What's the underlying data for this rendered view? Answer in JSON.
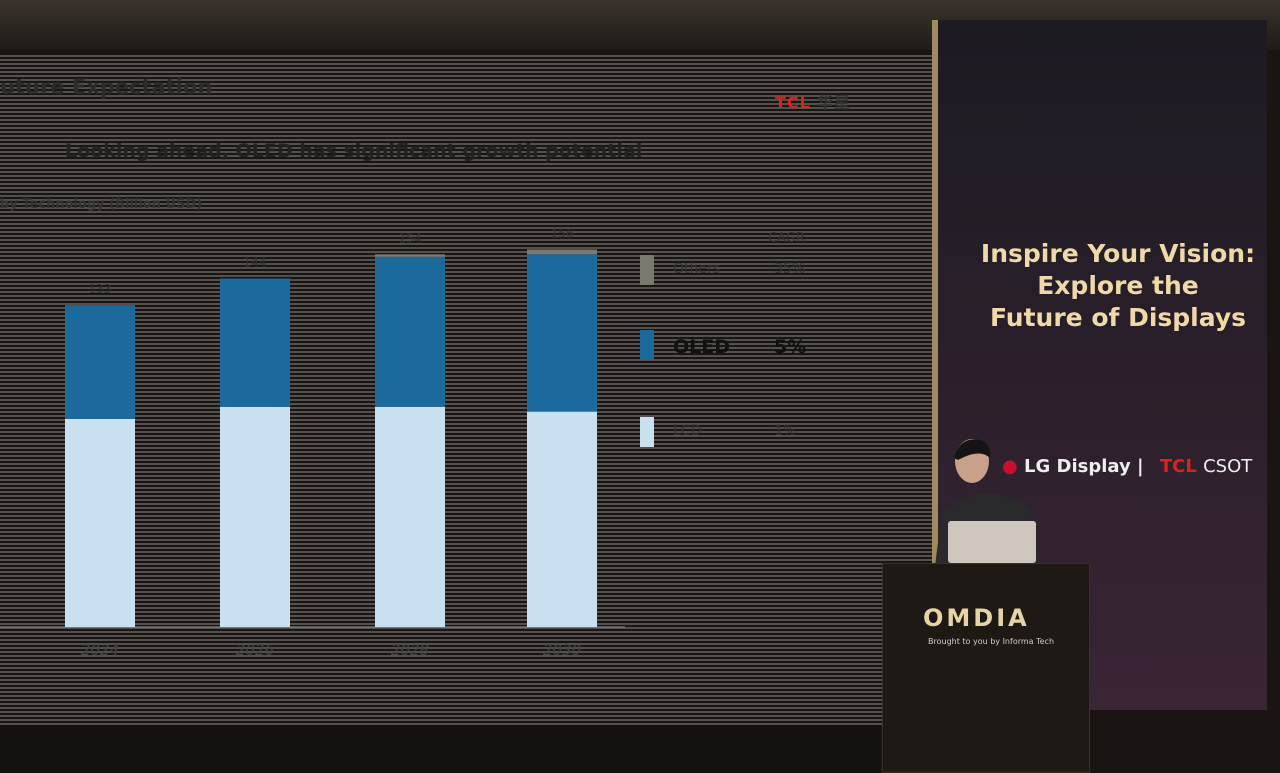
{
  "slide": {
    "title": "uture Expectation",
    "logo": "TCL",
    "logo_cn": "华星",
    "headline": "Looking ahead, OLED has significant growth potential",
    "ylabel": "by Technology (Billion USD)",
    "cagr_header": "CAGR"
  },
  "chart_data": {
    "type": "bar",
    "stacked": true,
    "title": "Looking ahead, OLED has significant growth potential",
    "ylabel": "by Technology (Billion USD)",
    "categories": [
      "2024",
      "2026",
      "2028",
      "2030"
    ],
    "totals": [
      133,
      144,
      154,
      156
    ],
    "series": [
      {
        "name": "LCD",
        "cagr": "1%",
        "color": "#c8e0f0",
        "values": [
          86,
          91,
          91,
          89
        ]
      },
      {
        "name": "OLED",
        "cagr": "5%",
        "color": "#1c6a9c",
        "values": [
          47,
          53,
          62,
          65
        ]
      },
      {
        "name": "Others",
        "cagr": "35%",
        "color": "#7a7a6e",
        "values": [
          0,
          0,
          1,
          2
        ]
      }
    ],
    "ylim": [
      0,
      160
    ],
    "grid": false,
    "legend": "right"
  },
  "banner": {
    "title_lines": [
      "Inspire Your Vision:",
      "Explore the",
      "Future of Displays"
    ],
    "sponsor1": "LG Display",
    "sponsor2": "TCL",
    "sponsor3": "CSOT"
  },
  "podium": {
    "brand": "OMDIA",
    "tagline": "Brought to you by Informa Tech"
  }
}
